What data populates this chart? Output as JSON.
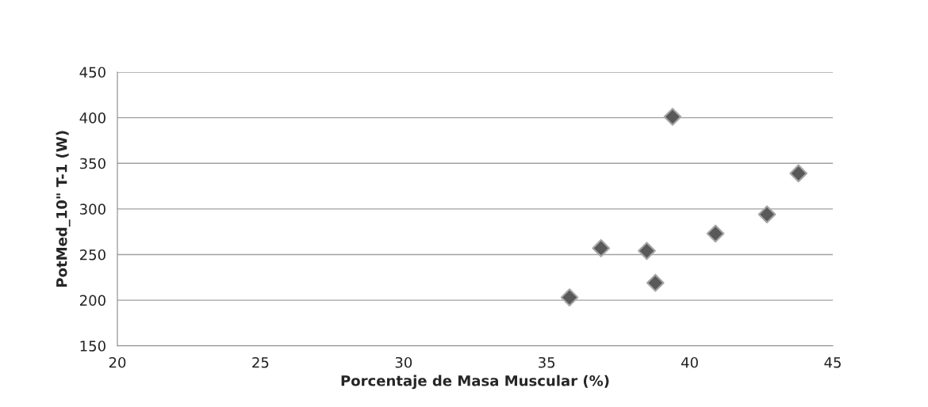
{
  "chart_data": {
    "type": "scatter",
    "xlabel": "Porcentaje de Masa Muscular (%)",
    "ylabel": "PotMed_10\" T-1 (W)",
    "x": [
      35.8,
      36.9,
      38.5,
      38.8,
      39.4,
      40.9,
      42.7,
      43.8
    ],
    "series": [
      {
        "color": "#595959",
        "values": [
          203,
          257,
          254,
          219,
          401,
          273,
          294,
          339
        ]
      }
    ],
    "xlim": [
      20,
      45
    ],
    "xticks": [
      20,
      25,
      30,
      35,
      40,
      45
    ],
    "ylim": [
      150,
      450
    ],
    "yticks": [
      150,
      200,
      250,
      300,
      350,
      400,
      450
    ],
    "grid": "y",
    "marker": "diamond",
    "legend": false
  }
}
